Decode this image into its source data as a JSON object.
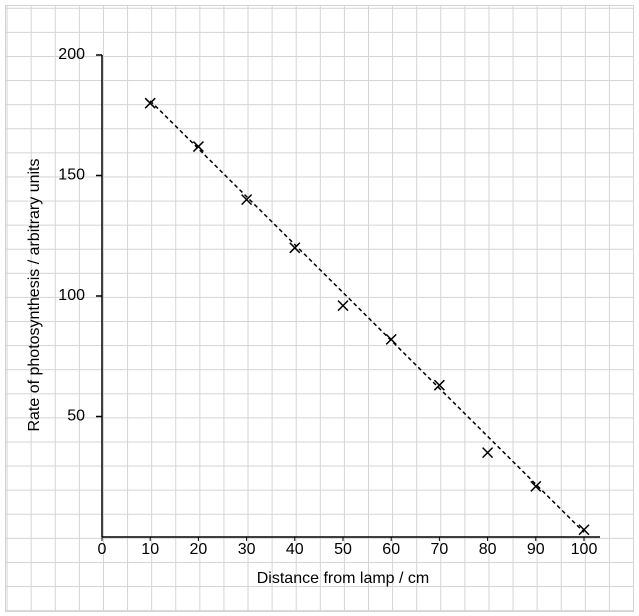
{
  "chart_data": {
    "type": "scatter",
    "x_label": "Distance from lamp / cm",
    "y_label": "Rate of photosynthesis / arbitrary units",
    "x": [
      10,
      20,
      30,
      40,
      50,
      60,
      70,
      80,
      90,
      100
    ],
    "values": [
      180,
      162,
      140,
      120,
      96,
      82,
      63,
      35,
      21,
      3
    ],
    "marker": "x",
    "color": "#000000",
    "trend_line": {
      "x": [
        10,
        100
      ],
      "values": [
        181,
        2
      ],
      "color": "#000000",
      "dashed": true
    },
    "xlim": [
      0,
      100
    ],
    "xticks": [
      0,
      10,
      20,
      30,
      40,
      50,
      60,
      70,
      80,
      90,
      100
    ],
    "ylim": [
      0,
      200
    ],
    "yticks": [
      50,
      100,
      150,
      200
    ]
  }
}
